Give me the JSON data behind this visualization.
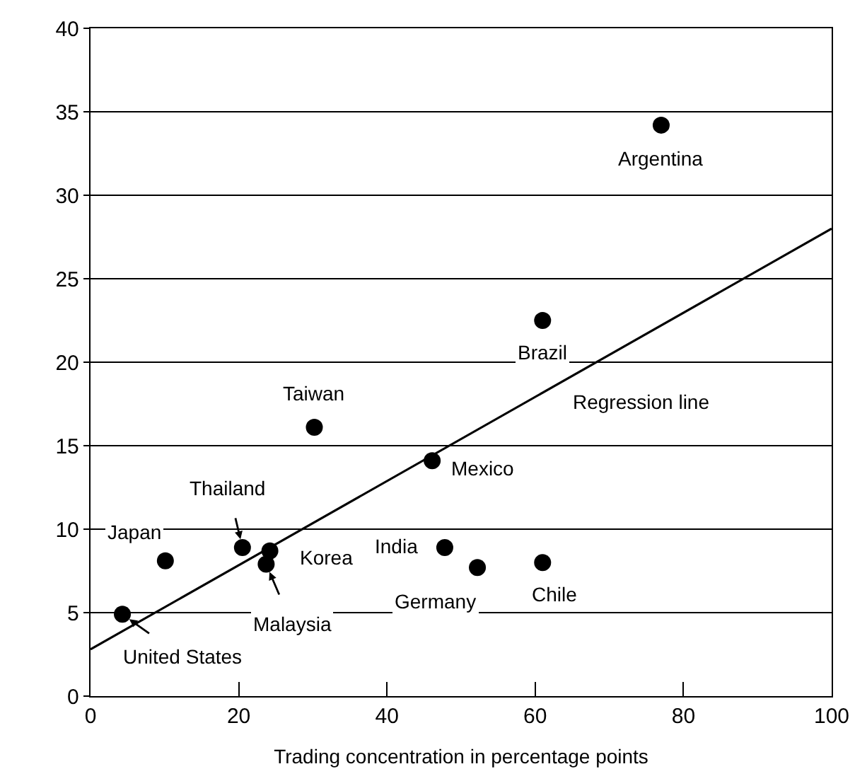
{
  "chart_data": {
    "type": "scatter",
    "xlabel": "Trading concentration in percentage points",
    "xlim": [
      0,
      100
    ],
    "xticks": [
      0,
      20,
      40,
      60,
      80,
      100
    ],
    "ylim": [
      0,
      40
    ],
    "yticks": [
      0,
      5,
      10,
      15,
      20,
      25,
      30,
      35,
      40
    ],
    "grid": "y",
    "series": [
      {
        "marker": "circle",
        "color": "#000000",
        "x": [
          77.0,
          61.0,
          30.2,
          46.1,
          10.1,
          20.5,
          24.2,
          23.7,
          4.3,
          47.8,
          52.2,
          61.0
        ],
        "values": [
          34.2,
          22.5,
          16.1,
          14.1,
          8.1,
          8.9,
          8.7,
          7.9,
          4.9,
          8.9,
          7.7,
          8.0
        ]
      },
      {
        "type": "line",
        "color": "#000000",
        "line_style": "solid",
        "x": [
          0,
          100
        ],
        "values": [
          2.8,
          28.0
        ]
      }
    ],
    "annotations": [
      {
        "text": "Argentina",
        "x": 77.0,
        "y": 34.2
      },
      {
        "text": "Brazil",
        "x": 61.0,
        "y": 22.5
      },
      {
        "text": "Taiwan",
        "x": 30.2,
        "y": 16.1
      },
      {
        "text": "Mexico",
        "x": 46.1,
        "y": 14.1
      },
      {
        "text": "Japan",
        "x": 10.1,
        "y": 8.1
      },
      {
        "text": "Thailand",
        "x": 20.5,
        "y": 8.9
      },
      {
        "text": "Korea",
        "x": 24.2,
        "y": 8.7
      },
      {
        "text": "Malaysia",
        "x": 23.7,
        "y": 7.9
      },
      {
        "text": "United States",
        "x": 4.3,
        "y": 4.9
      },
      {
        "text": "India",
        "x": 47.8,
        "y": 8.9
      },
      {
        "text": "Germany",
        "x": 52.2,
        "y": 7.7
      },
      {
        "text": "Chile",
        "x": 61.0,
        "y": 8.0
      },
      "Regression line"
    ]
  }
}
